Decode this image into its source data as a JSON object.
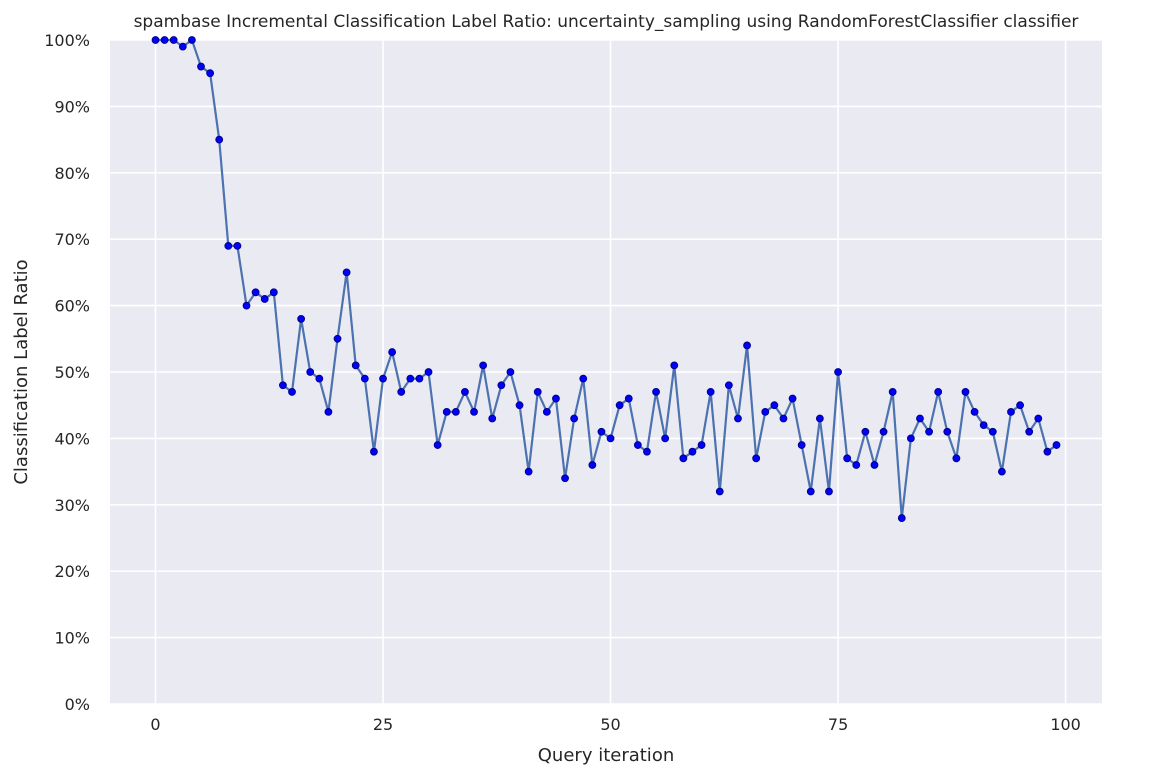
{
  "chart_data": {
    "type": "line",
    "title": "spambase Incremental Classification Label Ratio: uncertainty_sampling using RandomForestClassifier classifier",
    "xlabel": "Query iteration",
    "ylabel": "Classification Label Ratio",
    "xlim": [
      -5,
      104
    ],
    "ylim": [
      0,
      1
    ],
    "x_ticks": [
      0,
      25,
      50,
      75,
      100
    ],
    "y_ticks": [
      0,
      0.1,
      0.2,
      0.3,
      0.4,
      0.5,
      0.6,
      0.7,
      0.8,
      0.9,
      1.0
    ],
    "y_tick_labels": [
      "0%",
      "10%",
      "20%",
      "30%",
      "40%",
      "50%",
      "60%",
      "70%",
      "80%",
      "90%",
      "100%"
    ],
    "grid": true,
    "legend": "none",
    "colors": {
      "background": "#eaeaf2",
      "grid": "#ffffff",
      "line": "#4c72b0",
      "marker": "#0000ff",
      "marker_edge": "#00008b"
    },
    "series": [
      {
        "x": [
          0,
          1,
          2,
          3,
          4,
          5,
          6,
          7,
          8,
          9,
          10,
          11,
          12,
          13,
          14,
          15,
          16,
          17,
          18,
          19,
          20,
          21,
          22,
          23,
          24,
          25,
          26,
          27,
          28,
          29,
          30,
          31,
          32,
          33,
          34,
          35,
          36,
          37,
          38,
          39,
          40,
          41,
          42,
          43,
          44,
          45,
          46,
          47,
          48,
          49,
          50,
          51,
          52,
          53,
          54,
          55,
          56,
          57,
          58,
          59,
          60,
          61,
          62,
          63,
          64,
          65,
          66,
          67,
          68,
          69,
          70,
          71,
          72,
          73,
          74,
          75,
          76,
          77,
          78,
          79,
          80,
          81,
          82,
          83,
          84,
          85,
          86,
          87,
          88,
          89,
          90,
          91,
          92,
          93,
          94,
          95,
          96,
          97,
          98,
          99
        ],
        "values": [
          1.0,
          1.0,
          1.0,
          0.99,
          1.0,
          0.96,
          0.95,
          0.85,
          0.69,
          0.69,
          0.6,
          0.62,
          0.61,
          0.62,
          0.48,
          0.47,
          0.58,
          0.5,
          0.49,
          0.44,
          0.55,
          0.65,
          0.51,
          0.49,
          0.38,
          0.49,
          0.53,
          0.47,
          0.49,
          0.49,
          0.5,
          0.39,
          0.44,
          0.44,
          0.47,
          0.44,
          0.51,
          0.43,
          0.48,
          0.5,
          0.45,
          0.35,
          0.47,
          0.44,
          0.46,
          0.34,
          0.43,
          0.49,
          0.36,
          0.41,
          0.4,
          0.45,
          0.46,
          0.39,
          0.38,
          0.47,
          0.4,
          0.51,
          0.37,
          0.38,
          0.39,
          0.47,
          0.32,
          0.48,
          0.43,
          0.54,
          0.37,
          0.44,
          0.45,
          0.43,
          0.46,
          0.39,
          0.32,
          0.43,
          0.32,
          0.5,
          0.37,
          0.36,
          0.41,
          0.36,
          0.41,
          0.47,
          0.28,
          0.4,
          0.43,
          0.41,
          0.47,
          0.41,
          0.37,
          0.47,
          0.44,
          0.42,
          0.41,
          0.35,
          0.44,
          0.45,
          0.41,
          0.43,
          0.38,
          0.39
        ]
      }
    ]
  }
}
